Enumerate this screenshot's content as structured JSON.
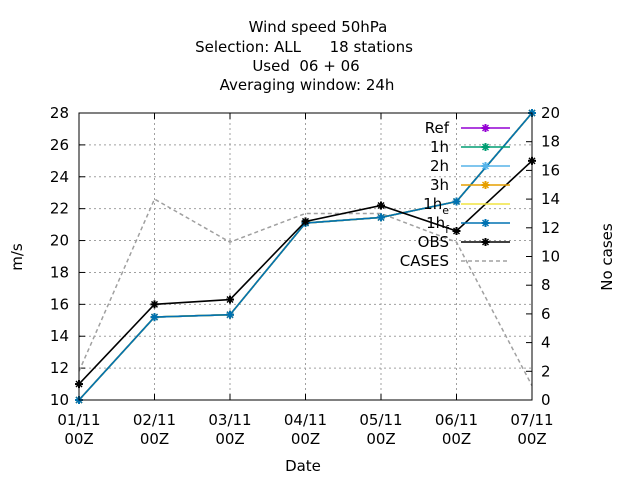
{
  "chart_data": {
    "type": "line",
    "title_lines": [
      "Wind speed 50hPa",
      "Selection: ALL      18 stations",
      "Used  06 + 06",
      "Averaging window: 24h"
    ],
    "xlabel": "Date",
    "ylabel": "m/s",
    "y2label": "No cases",
    "x_ticks": [
      {
        "line1": "01/11",
        "line2": "00Z"
      },
      {
        "line1": "02/11",
        "line2": "00Z"
      },
      {
        "line1": "03/11",
        "line2": "00Z"
      },
      {
        "line1": "04/11",
        "line2": "00Z"
      },
      {
        "line1": "05/11",
        "line2": "00Z"
      },
      {
        "line1": "06/11",
        "line2": "00Z"
      },
      {
        "line1": "07/11",
        "line2": "00Z"
      }
    ],
    "ylim": [
      10,
      28
    ],
    "y_ticks": [
      10,
      12,
      14,
      16,
      18,
      20,
      22,
      24,
      26,
      28
    ],
    "y2lim": [
      0,
      20
    ],
    "y2_ticks": [
      0,
      2,
      4,
      6,
      8,
      10,
      12,
      14,
      16,
      18,
      20
    ],
    "grid": true,
    "legend_position": "top-right",
    "series": [
      {
        "name": "Ref",
        "axis": "y",
        "color": "#9400d3",
        "style": "solid",
        "marker": "plus",
        "values": [
          10.0,
          15.2,
          15.35,
          21.1,
          21.45,
          22.45,
          28.0
        ]
      },
      {
        "name": "1h",
        "axis": "y",
        "color": "#009e73",
        "style": "solid",
        "marker": "plus",
        "values": [
          10.0,
          15.2,
          15.35,
          21.1,
          21.45,
          22.45,
          28.0
        ]
      },
      {
        "name": "2h",
        "axis": "y",
        "color": "#56b4e9",
        "style": "solid",
        "marker": "plus",
        "values": [
          10.0,
          15.2,
          15.35,
          21.1,
          21.45,
          22.45,
          28.0
        ]
      },
      {
        "name": "3h",
        "axis": "y",
        "color": "#e69f00",
        "style": "solid",
        "marker": "plus",
        "values": [
          10.0,
          15.2,
          15.35,
          21.1,
          21.45,
          22.45,
          28.0
        ]
      },
      {
        "name": "1h_e",
        "axis": "y",
        "color": "#f0e442",
        "style": "solid",
        "marker": "none",
        "values": [
          10.0,
          15.2,
          15.35,
          21.1,
          21.45,
          22.45,
          28.0
        ]
      },
      {
        "name": "1h_f",
        "axis": "y",
        "color": "#0072b2",
        "style": "solid",
        "marker": "plus",
        "values": [
          10.0,
          15.2,
          15.35,
          21.1,
          21.45,
          22.45,
          28.0
        ]
      },
      {
        "name": "OBS",
        "axis": "y",
        "color": "#000000",
        "style": "solid",
        "marker": "plus",
        "values": [
          11.0,
          16.0,
          16.3,
          21.2,
          22.2,
          20.6,
          25.0
        ]
      },
      {
        "name": "CASES",
        "axis": "y2",
        "color": "#a0a0a0",
        "style": "dashed",
        "marker": "none",
        "values": [
          2,
          14,
          11,
          13,
          13,
          11,
          1
        ]
      }
    ]
  },
  "legend_labels": {
    "ref": "Ref",
    "h1": "1h",
    "h2": "2h",
    "h3": "3h",
    "h1e_base": "1h",
    "h1e_sub": "e",
    "h1f_base": "1h",
    "h1f_sub": "f",
    "obs": "OBS",
    "cases": "CASES"
  }
}
